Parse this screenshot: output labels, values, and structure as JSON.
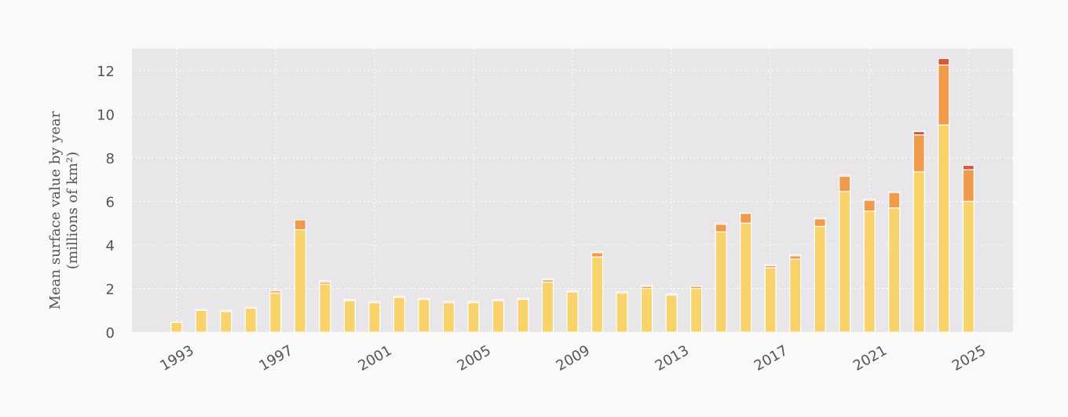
{
  "chart_data": {
    "type": "bar",
    "stacked": true,
    "y_label": "Mean surface value by year",
    "y_label_2": "(millions of km²)",
    "x": [
      1993,
      1994,
      1995,
      1996,
      1997,
      1998,
      1999,
      2000,
      2001,
      2002,
      2003,
      2004,
      2005,
      2006,
      2007,
      2008,
      2009,
      2010,
      2011,
      2012,
      2013,
      2014,
      2015,
      2016,
      2017,
      2018,
      2019,
      2020,
      2021,
      2022,
      2023,
      2024,
      2025
    ],
    "series": [
      {
        "color": "#f8d36c",
        "values": [
          0.45,
          1.0,
          0.95,
          1.1,
          1.8,
          4.7,
          2.2,
          1.45,
          1.35,
          1.6,
          1.5,
          1.35,
          1.35,
          1.45,
          1.5,
          2.3,
          1.85,
          3.45,
          1.8,
          2.0,
          1.7,
          2.0,
          4.6,
          5.0,
          2.95,
          3.35,
          4.85,
          6.45,
          5.55,
          5.7,
          7.35,
          9.5,
          6.0
        ]
      },
      {
        "color": "#f09a4c",
        "values": [
          0,
          0.05,
          0.05,
          0.05,
          0.1,
          0.45,
          0.1,
          0.05,
          0.05,
          0.05,
          0.05,
          0.05,
          0.05,
          0.05,
          0.05,
          0.1,
          0.05,
          0.2,
          0.05,
          0.1,
          0.05,
          0.1,
          0.35,
          0.45,
          0.1,
          0.15,
          0.35,
          0.7,
          0.5,
          0.7,
          1.7,
          2.75,
          1.45
        ]
      },
      {
        "color": "#d6573a",
        "values": [
          0,
          0,
          0,
          0,
          0,
          0,
          0.05,
          0,
          0,
          0,
          0,
          0,
          0,
          0,
          0,
          0.05,
          0,
          0.05,
          0,
          0.05,
          0,
          0,
          0.05,
          0,
          0.05,
          0.05,
          0.05,
          0.05,
          0.05,
          0.05,
          0.15,
          0.3,
          0.2
        ]
      }
    ],
    "xlim": [
      1991.2,
      2026.8
    ],
    "xticks": [
      1993,
      1997,
      2001,
      2005,
      2009,
      2013,
      2017,
      2021,
      2025
    ],
    "ylim": [
      0,
      13
    ],
    "yticks": [
      0,
      2,
      4,
      6,
      8,
      10,
      12
    ],
    "grid": true
  }
}
